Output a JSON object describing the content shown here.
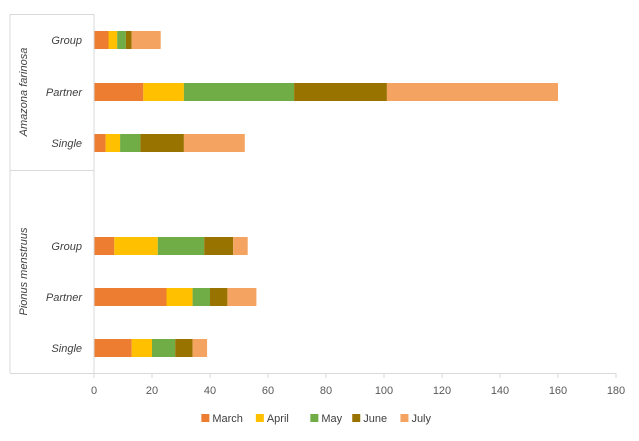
{
  "chart_data": {
    "type": "bar",
    "orientation": "horizontal",
    "stacked": true,
    "title": "",
    "xlabel": "",
    "ylabel": "",
    "xlim": [
      0,
      180
    ],
    "xticks": [
      0,
      20,
      40,
      60,
      80,
      100,
      120,
      140,
      160,
      180
    ],
    "grid": false,
    "legend_position": "bottom",
    "groups": [
      {
        "name": "Amazona farinosa",
        "categories": [
          "Group",
          "Partner",
          "Single"
        ],
        "series": [
          {
            "name": "March",
            "values": [
              5,
              17,
              4
            ]
          },
          {
            "name": "April",
            "values": [
              3,
              14,
              5
            ]
          },
          {
            "name": "May",
            "values": [
              3,
              38,
              7
            ]
          },
          {
            "name": "June",
            "values": [
              2,
              32,
              15
            ]
          },
          {
            "name": "July",
            "values": [
              10,
              59,
              21
            ]
          }
        ]
      },
      {
        "name": "Pionus menstruus",
        "categories": [
          "Group",
          "Partner",
          "Single"
        ],
        "series": [
          {
            "name": "March",
            "values": [
              7,
              25,
              13
            ]
          },
          {
            "name": "April",
            "values": [
              15,
              9,
              7
            ]
          },
          {
            "name": "May",
            "values": [
              16,
              6,
              8
            ]
          },
          {
            "name": "June",
            "values": [
              10,
              6,
              6
            ]
          },
          {
            "name": "July",
            "values": [
              5,
              10,
              5
            ]
          }
        ]
      }
    ],
    "legend": [
      "March",
      "April",
      "May",
      "June",
      "July"
    ],
    "colors": [
      "#ED7D31",
      "#FFC000",
      "#70AD47",
      "#997300",
      "#F4A460"
    ]
  }
}
